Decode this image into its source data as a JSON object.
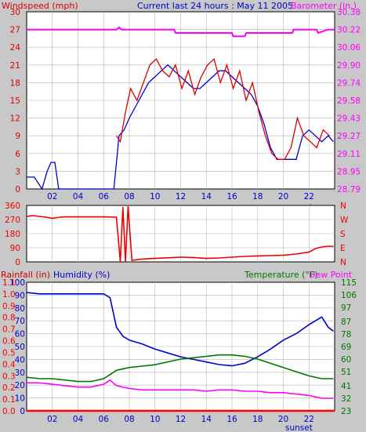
{
  "header": {
    "left_label": "Windspeed (mph)",
    "title": "Current last 24 hours : May 11 2005",
    "right_label": "Barometer (in.)"
  },
  "colors": {
    "background": "#c8c8c8",
    "plot_bg": "#ffffff",
    "grid": "#b4b4b4",
    "windspeed_avg": "#0000cc",
    "windspeed_gust": "#dd0000",
    "barometer": "#ff00ff",
    "direction": "#ee0000",
    "humidity": "#0000cc",
    "temperature": "#007700",
    "dew_point": "#ff00ff",
    "rainfall": "#ff0000"
  },
  "lower_header": {
    "rainfall_label": "Rainfall (in)",
    "humidity_label": "Humidity (%)",
    "temperature_label": "Temperature (°F)",
    "dewpoint_label": "Dew Point"
  },
  "sunset_label": "sunset",
  "chart_data": [
    {
      "type": "line",
      "x_ticks": [
        "02",
        "04",
        "06",
        "08",
        "10",
        "12",
        "14",
        "16",
        "18",
        "20",
        "22"
      ],
      "left_axis": {
        "label": "Windspeed (mph)",
        "ticks": [
          0,
          3,
          6,
          9,
          12,
          15,
          18,
          21,
          24,
          27,
          30
        ],
        "ylim": [
          0,
          30
        ]
      },
      "right_axis": {
        "label": "Barometer (in.)",
        "ticks": [
          "28.79",
          "28.95",
          "29.11",
          "29.27",
          "29.43",
          "29.58",
          "29.74",
          "29.90",
          "30.06",
          "30.22",
          "30.38"
        ],
        "ylim": [
          28.79,
          30.38
        ]
      },
      "series": [
        {
          "role": "windspeed-avg",
          "axis": "left",
          "x": [
            0,
            0.6,
            1.2,
            1.6,
            1.9,
            2.2,
            2.5,
            2.8,
            6.8,
            7.2,
            7.6,
            8.0,
            8.5,
            9.0,
            9.5,
            10.0,
            10.5,
            11.0,
            11.5,
            12.0,
            12.5,
            13.0,
            13.5,
            14.0,
            14.5,
            15.0,
            15.5,
            16.0,
            16.5,
            17.0,
            17.5,
            18.0,
            18.5,
            19.0,
            19.5,
            20.0,
            20.5,
            21.0,
            21.5,
            22.0,
            22.5,
            23.0,
            23.5,
            23.9
          ],
          "values": [
            2,
            2,
            0,
            3,
            4.5,
            4.5,
            0,
            0,
            0,
            9,
            10,
            12,
            14,
            16,
            18,
            19,
            20,
            21,
            20,
            19,
            18,
            17,
            17,
            18,
            19,
            20,
            20,
            19,
            18,
            17,
            16,
            14,
            11,
            7,
            5,
            5,
            5,
            5,
            9,
            10,
            9,
            8,
            9,
            8
          ]
        },
        {
          "role": "windspeed-gust",
          "axis": "left",
          "x": [
            7.0,
            7.3,
            7.7,
            8.1,
            8.6,
            9.1,
            9.6,
            10.1,
            10.6,
            11.1,
            11.6,
            12.1,
            12.6,
            13.1,
            13.6,
            14.1,
            14.6,
            15.1,
            15.6,
            16.1,
            16.6,
            17.1,
            17.6,
            18.1,
            18.6,
            19.1,
            19.6,
            20.1,
            20.6,
            21.1,
            21.6,
            22.1,
            22.6,
            23.1,
            23.6
          ],
          "values": [
            9,
            8,
            13,
            17,
            15,
            18,
            21,
            22,
            20,
            19,
            21,
            17,
            20,
            16,
            19,
            21,
            22,
            18,
            21,
            17,
            20,
            15,
            18,
            13,
            9,
            6,
            5,
            5,
            7,
            12,
            9,
            8,
            7,
            10,
            9
          ]
        },
        {
          "role": "barometer",
          "axis": "right",
          "x": [
            0,
            7.0,
            7.2,
            7.4,
            11.5,
            11.6,
            16.0,
            16.1,
            17.0,
            17.1,
            20.7,
            20.8,
            22.6,
            22.7,
            23.5,
            24.0
          ],
          "values": [
            30.22,
            30.22,
            30.24,
            30.22,
            30.22,
            30.19,
            30.19,
            30.16,
            30.16,
            30.19,
            30.19,
            30.22,
            30.22,
            30.19,
            30.22,
            30.22
          ]
        }
      ]
    },
    {
      "type": "line",
      "x_ticks": [],
      "left_axis": {
        "ticks": [
          0,
          90,
          180,
          270,
          360
        ],
        "ylim": [
          0,
          360
        ]
      },
      "right_axis": {
        "ticks": [
          "N",
          "E",
          "S",
          "W",
          "N"
        ]
      },
      "series": [
        {
          "role": "wind-direction",
          "x": [
            0,
            0.5,
            1.0,
            1.5,
            2.0,
            2.6,
            3.0,
            4.0,
            5.0,
            6.0,
            7.0,
            7.3,
            7.5,
            7.7,
            7.9,
            8.2,
            9,
            10,
            11,
            12,
            13,
            14,
            15,
            16,
            17,
            18,
            19,
            20,
            21,
            22,
            22.5,
            23,
            23.5,
            23.9
          ],
          "values": [
            290,
            295,
            290,
            285,
            278,
            285,
            287,
            287,
            287,
            287,
            285,
            0,
            350,
            0,
            355,
            10,
            18,
            22,
            26,
            30,
            28,
            22,
            25,
            30,
            35,
            38,
            40,
            42,
            50,
            62,
            85,
            95,
            100,
            98
          ]
        }
      ]
    },
    {
      "type": "line",
      "x_ticks": [
        "02",
        "04",
        "06",
        "08",
        "10",
        "12",
        "14",
        "16",
        "18",
        "20",
        "22"
      ],
      "left_axis_rain": {
        "label": "Rainfall (in)",
        "ticks": [
          "0.0",
          "0.1",
          "0.2",
          "0.3",
          "0.4",
          "0.5",
          "0.6",
          "0.7",
          "0.8",
          "0.9",
          "1.0",
          "1.1"
        ],
        "ylim": [
          0,
          1.1
        ]
      },
      "left_axis_humidity": {
        "label": "Humidity (%)",
        "ticks": [
          0,
          10,
          20,
          30,
          40,
          50,
          60,
          70,
          80,
          90,
          100
        ],
        "ylim": [
          0,
          100
        ]
      },
      "right_axis": {
        "label": "Temperature (°F)",
        "ticks": [
          23,
          32,
          41,
          51,
          60,
          69,
          78,
          87,
          97,
          106,
          115
        ],
        "ylim": [
          23,
          115
        ]
      },
      "series": [
        {
          "role": "humidity",
          "axis": "humidity",
          "x": [
            0,
            1,
            2,
            3,
            4,
            5,
            6,
            6.5,
            7,
            7.5,
            8,
            9,
            10,
            11,
            12,
            13,
            14,
            15,
            16,
            17,
            18,
            19,
            20,
            21,
            22,
            22.5,
            23,
            23.5,
            23.9
          ],
          "values": [
            92,
            91,
            91,
            91,
            91,
            91,
            91,
            88,
            65,
            58,
            55,
            52,
            48,
            45,
            42,
            40,
            38,
            36,
            35,
            37,
            42,
            48,
            55,
            60,
            67,
            70,
            73,
            65,
            62
          ]
        },
        {
          "role": "temperature",
          "axis": "right",
          "x": [
            0,
            1,
            2,
            3,
            4,
            5,
            6,
            6.5,
            7,
            8,
            9,
            10,
            11,
            12,
            13,
            14,
            15,
            16,
            17,
            18,
            19,
            20,
            21,
            22,
            22.5,
            23,
            23.9
          ],
          "values": [
            47,
            46,
            46,
            45,
            44,
            44,
            46,
            49,
            52,
            54,
            55,
            56,
            58,
            60,
            61,
            62,
            63,
            63,
            62,
            60,
            57,
            54,
            51,
            48,
            47,
            46,
            46
          ]
        },
        {
          "role": "dew-point",
          "axis": "right",
          "x": [
            0,
            1,
            2,
            3,
            4,
            5,
            6,
            6.5,
            7,
            8,
            9,
            10,
            11,
            12,
            13,
            14,
            15,
            16,
            17,
            18,
            19,
            20,
            21,
            22,
            22.5,
            23,
            23.9
          ],
          "values": [
            43,
            43,
            42,
            41,
            40,
            40,
            42,
            45,
            41,
            39,
            38,
            38,
            38,
            38,
            38,
            37,
            38,
            38,
            37,
            37,
            36,
            36,
            35,
            34,
            33,
            32,
            32
          ]
        },
        {
          "role": "rainfall",
          "axis": "rain",
          "x": [
            0,
            24
          ],
          "values": [
            0,
            0
          ]
        }
      ]
    }
  ]
}
